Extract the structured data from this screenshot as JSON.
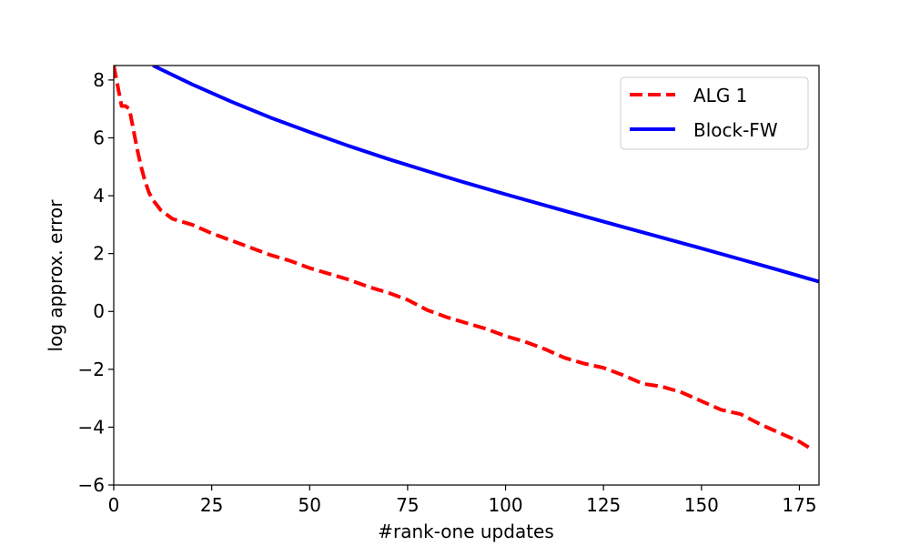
{
  "chart_data": {
    "type": "line",
    "title": "",
    "xlabel": "#rank-one updates",
    "ylabel": "log approx. error",
    "xlim": [
      0,
      180
    ],
    "ylim": [
      -6,
      8.5
    ],
    "xticks": [
      0,
      25,
      50,
      75,
      100,
      125,
      150,
      175
    ],
    "yticks": [
      -6,
      -4,
      -2,
      0,
      2,
      4,
      6,
      8
    ],
    "xtick_labels": [
      "0",
      "25",
      "50",
      "75",
      "100",
      "125",
      "150",
      "175"
    ],
    "ytick_labels": [
      "−6",
      "−4",
      "−2",
      "0",
      "2",
      "4",
      "6",
      "8"
    ],
    "grid": false,
    "legend_position": "top-right",
    "series": [
      {
        "name": "ALG 1",
        "color": "#ff0000",
        "style": "dashed",
        "x": [
          0,
          1,
          2,
          3,
          4,
          5,
          6,
          7,
          8,
          9,
          10,
          12,
          15,
          20,
          25,
          30,
          35,
          40,
          45,
          50,
          55,
          60,
          65,
          70,
          75,
          80,
          85,
          90,
          95,
          100,
          105,
          110,
          115,
          120,
          125,
          130,
          135,
          140,
          145,
          150,
          155,
          160,
          165,
          170,
          175,
          178
        ],
        "y": [
          8.5,
          7.8,
          7.1,
          7.1,
          7.0,
          6.3,
          5.6,
          5.0,
          4.5,
          4.1,
          3.85,
          3.5,
          3.2,
          3.0,
          2.7,
          2.45,
          2.2,
          1.95,
          1.75,
          1.5,
          1.3,
          1.1,
          0.85,
          0.65,
          0.4,
          0.05,
          -0.2,
          -0.4,
          -0.6,
          -0.85,
          -1.05,
          -1.3,
          -1.6,
          -1.8,
          -1.95,
          -2.2,
          -2.5,
          -2.6,
          -2.8,
          -3.1,
          -3.4,
          -3.55,
          -3.9,
          -4.2,
          -4.5,
          -4.75
        ]
      },
      {
        "name": "Block-FW",
        "color": "#0000ff",
        "style": "solid",
        "x": [
          10,
          20,
          30,
          40,
          50,
          60,
          70,
          80,
          90,
          100,
          110,
          120,
          130,
          140,
          150,
          160,
          170,
          180
        ],
        "y": [
          8.5,
          7.85,
          7.25,
          6.7,
          6.2,
          5.72,
          5.27,
          4.85,
          4.44,
          4.05,
          3.67,
          3.29,
          2.92,
          2.55,
          2.18,
          1.8,
          1.42,
          1.03
        ]
      }
    ]
  }
}
